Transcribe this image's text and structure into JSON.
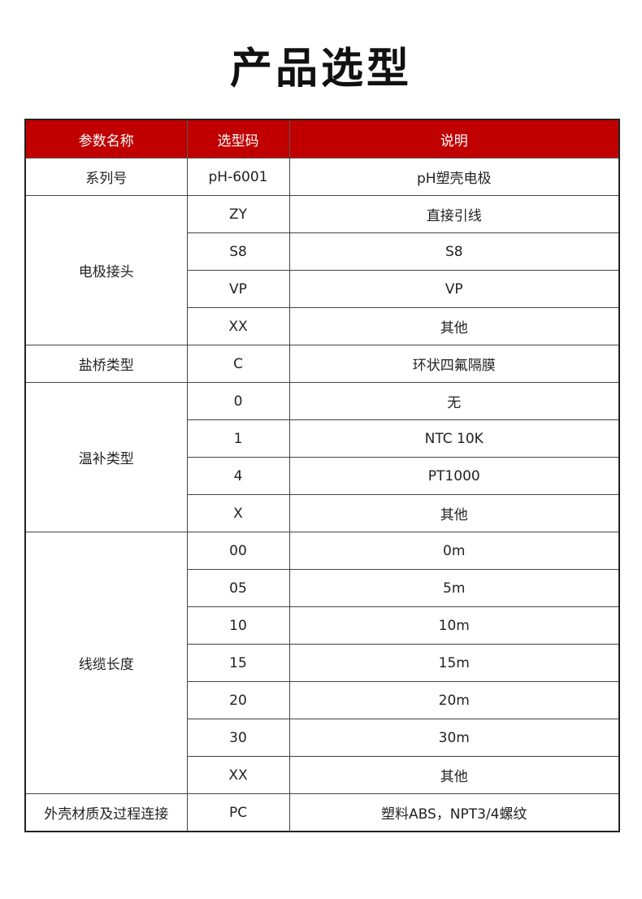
{
  "title": "产品选型",
  "header": [
    "参数名称",
    "选型码",
    "说明"
  ],
  "groups": [
    {
      "name": "系列号",
      "rows": [
        [
          "pH-6001",
          "pH塑壳电极"
        ]
      ]
    },
    {
      "name": "电极接头",
      "rows": [
        [
          "ZY",
          "直接引线"
        ],
        [
          "S8",
          "S8"
        ],
        [
          "VP",
          "VP"
        ],
        [
          "XX",
          "其他"
        ]
      ]
    },
    {
      "name": "盐桥类型",
      "rows": [
        [
          "C",
          "环状四氟隔膜"
        ]
      ]
    },
    {
      "name": "温补类型",
      "rows": [
        [
          "0",
          "无"
        ],
        [
          "1",
          "NTC 10K"
        ],
        [
          "4",
          "PT1000"
        ],
        [
          "X",
          "其他"
        ]
      ]
    },
    {
      "name": "线缆长度",
      "rows": [
        [
          "00",
          "0m"
        ],
        [
          "05",
          "5m"
        ],
        [
          "10",
          "10m"
        ],
        [
          "15",
          "15m"
        ],
        [
          "20",
          "20m"
        ],
        [
          "30",
          "30m"
        ],
        [
          "XX",
          "其他"
        ]
      ]
    },
    {
      "name": "外壳材质及过程连接",
      "rows": [
        [
          "PC",
          "塑料ABS，NPT3/4螺纹"
        ]
      ]
    }
  ],
  "colors": {
    "header_bg": "#c00000"
  }
}
